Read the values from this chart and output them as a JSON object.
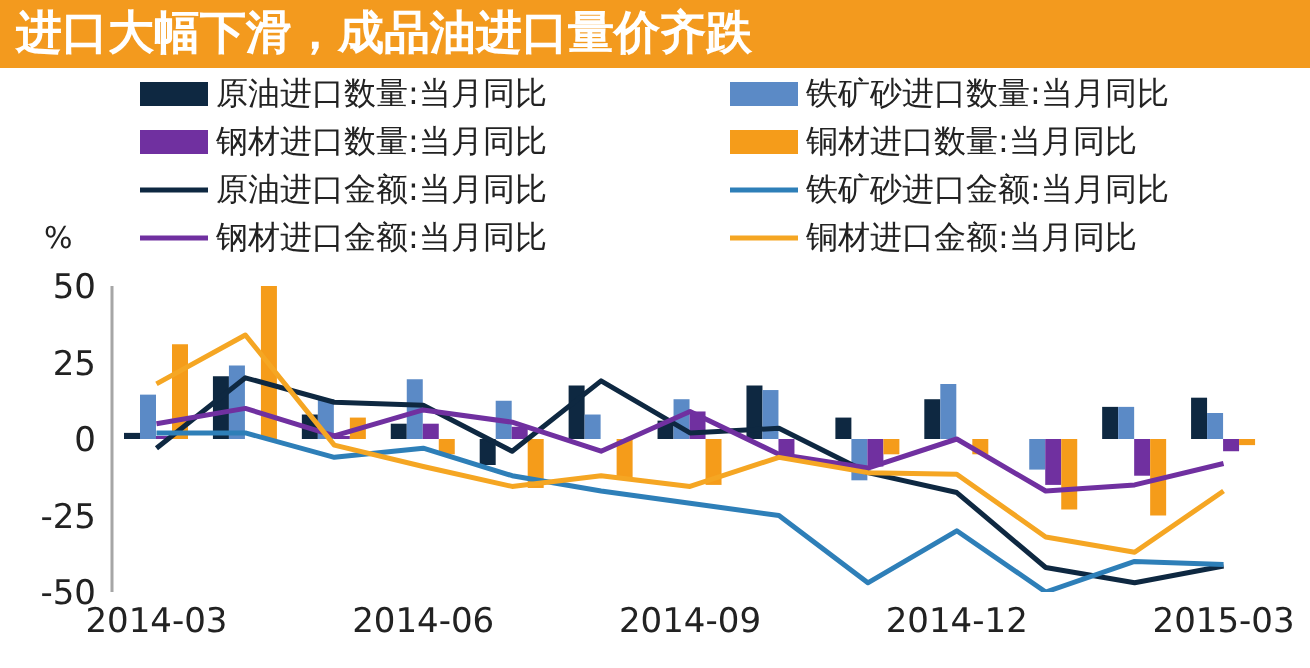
{
  "chart_data": {
    "type": "bar",
    "title": "进口大幅下滑，成品油进口量价齐跌",
    "ylabel": "%",
    "categories": [
      "2014-03",
      null,
      null,
      "2014-06",
      null,
      null,
      "2014-09",
      null,
      null,
      "2014-12",
      null,
      null,
      "2015-03"
    ],
    "ylim": [
      -50,
      50
    ],
    "yticks": [
      -50,
      -25,
      0,
      25,
      50
    ],
    "legend": "top",
    "marker": "none",
    "line_style": "solid",
    "series": [
      {
        "name": "原油进口数量:当月同比",
        "color": "#0e2841",
        "values": [
          2,
          20.5,
          8,
          5,
          -8.5,
          17.5,
          6,
          17.5,
          7,
          13,
          0,
          10.5,
          13.5
        ]
      },
      {
        "name": "铁矿砂进口数量:当月同比",
        "color": "#5b8ac6",
        "values": [
          14.5,
          24,
          13,
          19.5,
          12.5,
          8,
          13,
          16,
          -13.5,
          18,
          -10,
          10.5,
          8.5
        ]
      },
      {
        "name": "钢材进口数量:当月同比",
        "color": "#7030a0",
        "values": [
          1,
          null,
          1,
          5,
          4,
          0,
          9,
          -5,
          -9,
          0,
          -15,
          -12,
          -4
        ]
      },
      {
        "name": "铜材进口数量:当月同比",
        "color": "#f59c1a",
        "values": [
          31,
          50,
          7,
          -5,
          -16,
          -13,
          -15,
          0,
          -5,
          -5,
          -23,
          -25,
          -2
        ]
      },
      {
        "name": "原油进口金额:当月同比",
        "type": "line",
        "color": "#0e2841",
        "values": [
          -3,
          20,
          12,
          11,
          -4,
          19,
          2,
          3.5,
          -11,
          -17.5,
          -42,
          -47,
          -41.5
        ]
      },
      {
        "name": "铁矿砂进口金额:当月同比",
        "type": "line",
        "color": "#2e7fb8",
        "values": [
          2,
          2,
          -6,
          -3,
          -12,
          -17,
          -21,
          -25,
          -47,
          -30,
          -50,
          -40,
          -41
        ]
      },
      {
        "name": "钢材进口金额:当月同比",
        "type": "line",
        "color": "#7030a0",
        "values": [
          5,
          10,
          1,
          9.5,
          5.5,
          -4,
          9,
          -5,
          -9.5,
          0,
          -17,
          -15,
          -8
        ]
      },
      {
        "name": "铜材进口金额:当月同比",
        "type": "line",
        "color": "#f5a623",
        "values": [
          18,
          34,
          -2,
          -9,
          -15.5,
          -12,
          -15.5,
          -6,
          -11,
          -11.5,
          -32,
          -37,
          -17
        ]
      }
    ]
  }
}
